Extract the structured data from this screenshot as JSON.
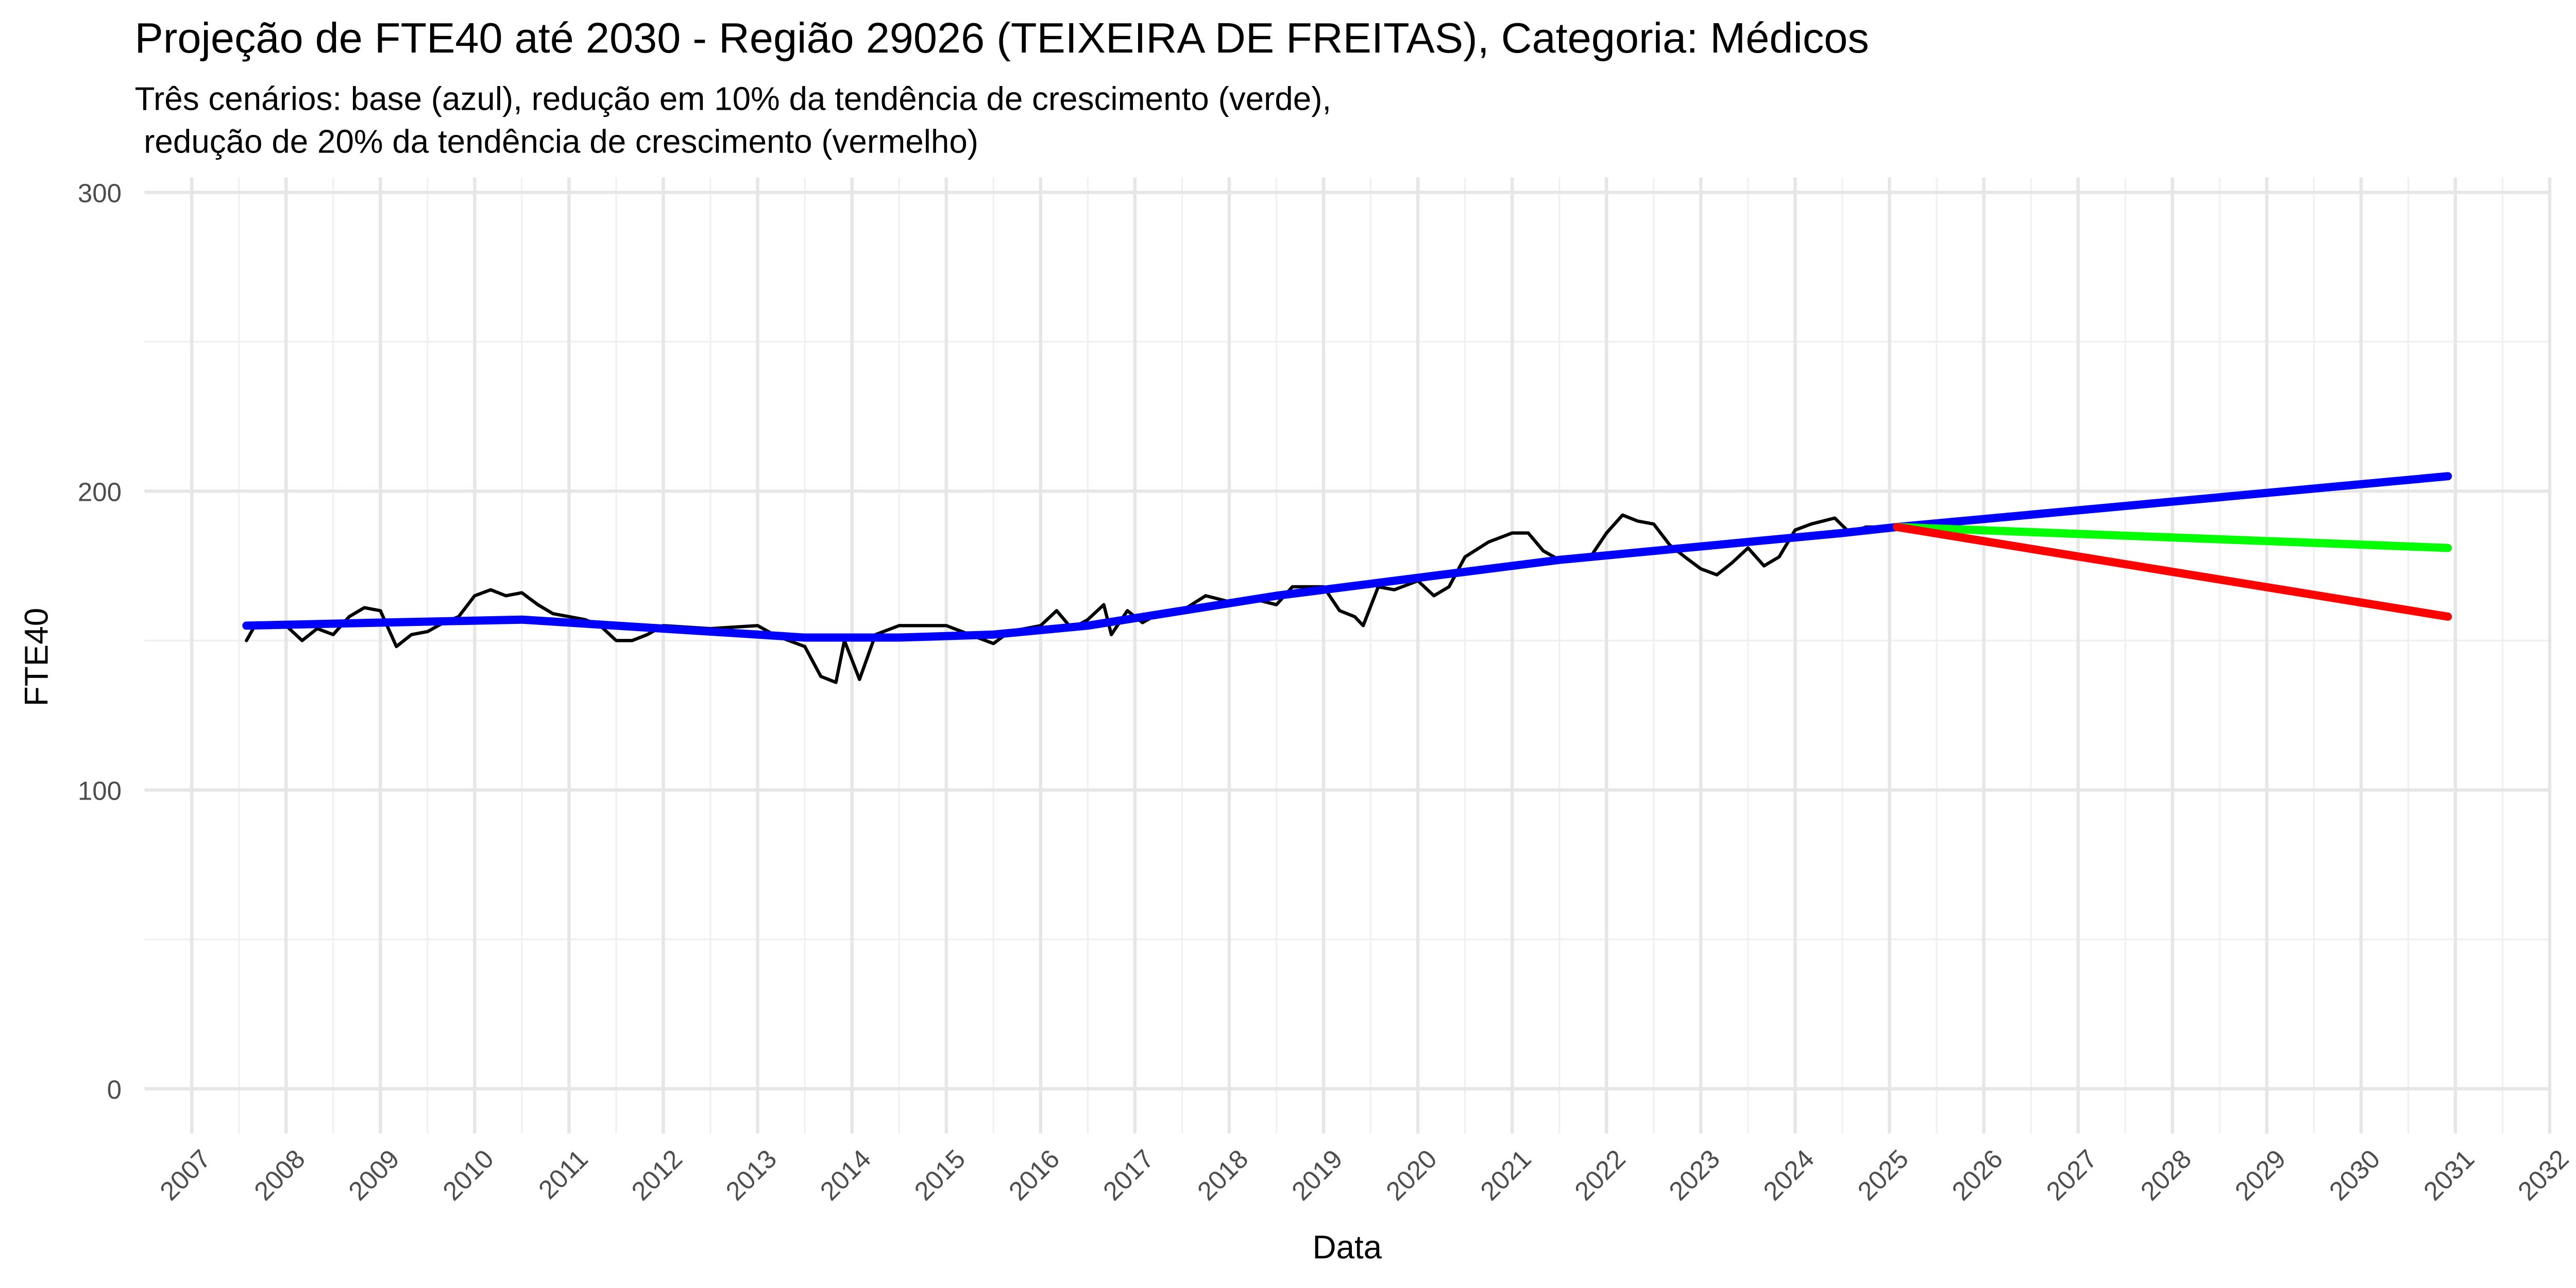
{
  "chart_data": {
    "type": "line",
    "title": "Projeção de FTE40 até 2030 - Região 29026 (TEIXEIRA DE FREITAS), Categoria: Médicos",
    "subtitle": [
      "Três cenários: base (azul), redução em 10% da tendência de crescimento (verde),",
      " redução de 20% da tendência de crescimento (vermelho)"
    ],
    "x_label": "Data",
    "y_label": "FTE40",
    "xlim": [
      2006.5,
      2032.0
    ],
    "ylim": [
      -15,
      305
    ],
    "xticks": [
      2007,
      2008,
      2009,
      2010,
      2011,
      2012,
      2013,
      2014,
      2015,
      2016,
      2017,
      2018,
      2019,
      2020,
      2021,
      2022,
      2023,
      2024,
      2025,
      2026,
      2027,
      2028,
      2029,
      2030,
      2031,
      2032
    ],
    "yticks": [
      0,
      100,
      200,
      300
    ],
    "grid": true,
    "series": [
      {
        "color": "#000000",
        "x": [
          2007.58,
          2007.67,
          2007.83,
          2008.0,
          2008.17,
          2008.33,
          2008.5,
          2008.67,
          2008.83,
          2009.0,
          2009.17,
          2009.33,
          2009.5,
          2009.67,
          2009.83,
          2010.0,
          2010.17,
          2010.33,
          2010.5,
          2010.67,
          2010.83,
          2011.0,
          2011.17,
          2011.33,
          2011.5,
          2011.67,
          2011.83,
          2012.0,
          2012.5,
          2013.0,
          2013.17,
          2013.33,
          2013.5,
          2013.67,
          2013.83,
          2013.92,
          2014.08,
          2014.25,
          2014.5,
          2015.0,
          2015.25,
          2015.5,
          2015.67,
          2016.0,
          2016.17,
          2016.33,
          2016.5,
          2016.67,
          2016.75,
          2016.92,
          2017.08,
          2017.25,
          2017.5,
          2017.75,
          2018.0,
          2018.25,
          2018.5,
          2018.67,
          2019.0,
          2019.17,
          2019.33,
          2019.42,
          2019.58,
          2019.75,
          2020.0,
          2020.17,
          2020.33,
          2020.5,
          2020.75,
          2021.0,
          2021.17,
          2021.33,
          2021.5,
          2021.83,
          2022.0,
          2022.17,
          2022.33,
          2022.5,
          2022.67,
          2022.83,
          2023.0,
          2023.17,
          2023.33,
          2023.5,
          2023.67,
          2023.83,
          2024.0,
          2024.17,
          2024.42,
          2024.58,
          2024.75,
          2025.08
        ],
        "values": [
          150,
          155,
          155,
          155,
          150,
          154,
          152,
          158,
          161,
          160,
          148,
          152,
          153,
          156,
          158,
          165,
          167,
          165,
          166,
          162,
          159,
          158,
          157,
          155,
          150,
          150,
          152,
          155,
          154,
          155,
          152,
          150,
          148,
          138,
          136,
          150,
          137,
          152,
          155,
          155,
          152,
          149,
          153,
          155,
          160,
          154,
          157,
          162,
          152,
          160,
          156,
          159,
          160,
          165,
          163,
          164,
          162,
          168,
          168,
          160,
          158,
          155,
          168,
          167,
          170,
          165,
          168,
          178,
          183,
          186,
          186,
          180,
          177,
          178,
          186,
          192,
          190,
          189,
          182,
          178,
          174,
          172,
          176,
          181,
          175,
          178,
          187,
          189,
          191,
          186,
          188,
          188
        ]
      },
      {
        "color": "#0000ff",
        "x": [
          2007.58,
          2009.0,
          2010.5,
          2012.0,
          2013.5,
          2014.5,
          2015.5,
          2016.5,
          2017.5,
          2018.5,
          2019.5,
          2020.5,
          2021.5,
          2022.5,
          2023.5,
          2024.5,
          2025.08,
          2030.92
        ],
        "values": [
          155,
          156,
          157,
          154,
          151,
          151,
          152,
          155,
          160,
          165,
          169,
          173,
          177,
          180,
          183,
          186,
          188,
          205
        ]
      },
      {
        "color": "#00ff00",
        "x": [
          2025.08,
          2030.92
        ],
        "values": [
          188,
          181
        ]
      },
      {
        "color": "#ff0000",
        "x": [
          2025.08,
          2030.92
        ],
        "values": [
          188,
          158
        ]
      }
    ]
  }
}
